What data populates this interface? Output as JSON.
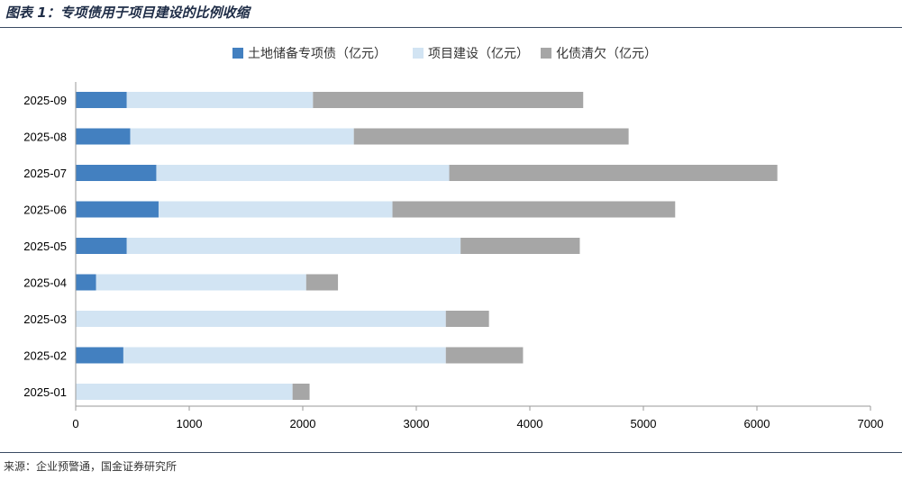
{
  "header": {
    "title": "图表 1：专项债用于项目建设的比例收缩"
  },
  "footer": {
    "source": "来源：企业预警通，国金证券研究所"
  },
  "chart_data": {
    "type": "bar",
    "orientation": "horizontal",
    "stacked": true,
    "categories": [
      "2025-01",
      "2025-02",
      "2025-03",
      "2025-04",
      "2025-05",
      "2025-06",
      "2025-07",
      "2025-08",
      "2025-09"
    ],
    "series": [
      {
        "name": "土地储备专项债（亿元）",
        "color": "#4380c0",
        "values": [
          0,
          420,
          0,
          180,
          450,
          730,
          710,
          480,
          450
        ]
      },
      {
        "name": "项目建设（亿元）",
        "color": "#d2e4f3",
        "values": [
          1910,
          2840,
          3260,
          1850,
          2940,
          2060,
          2580,
          1970,
          1640
        ]
      },
      {
        "name": "化债清欠（亿元）",
        "color": "#a6a6a6",
        "values": [
          150,
          680,
          380,
          280,
          1050,
          2490,
          2890,
          2420,
          2380
        ]
      }
    ],
    "xlim": [
      0,
      7000
    ],
    "xticks": [
      0,
      1000,
      2000,
      3000,
      4000,
      5000,
      6000,
      7000
    ],
    "legend_position": "top",
    "grid": false
  }
}
